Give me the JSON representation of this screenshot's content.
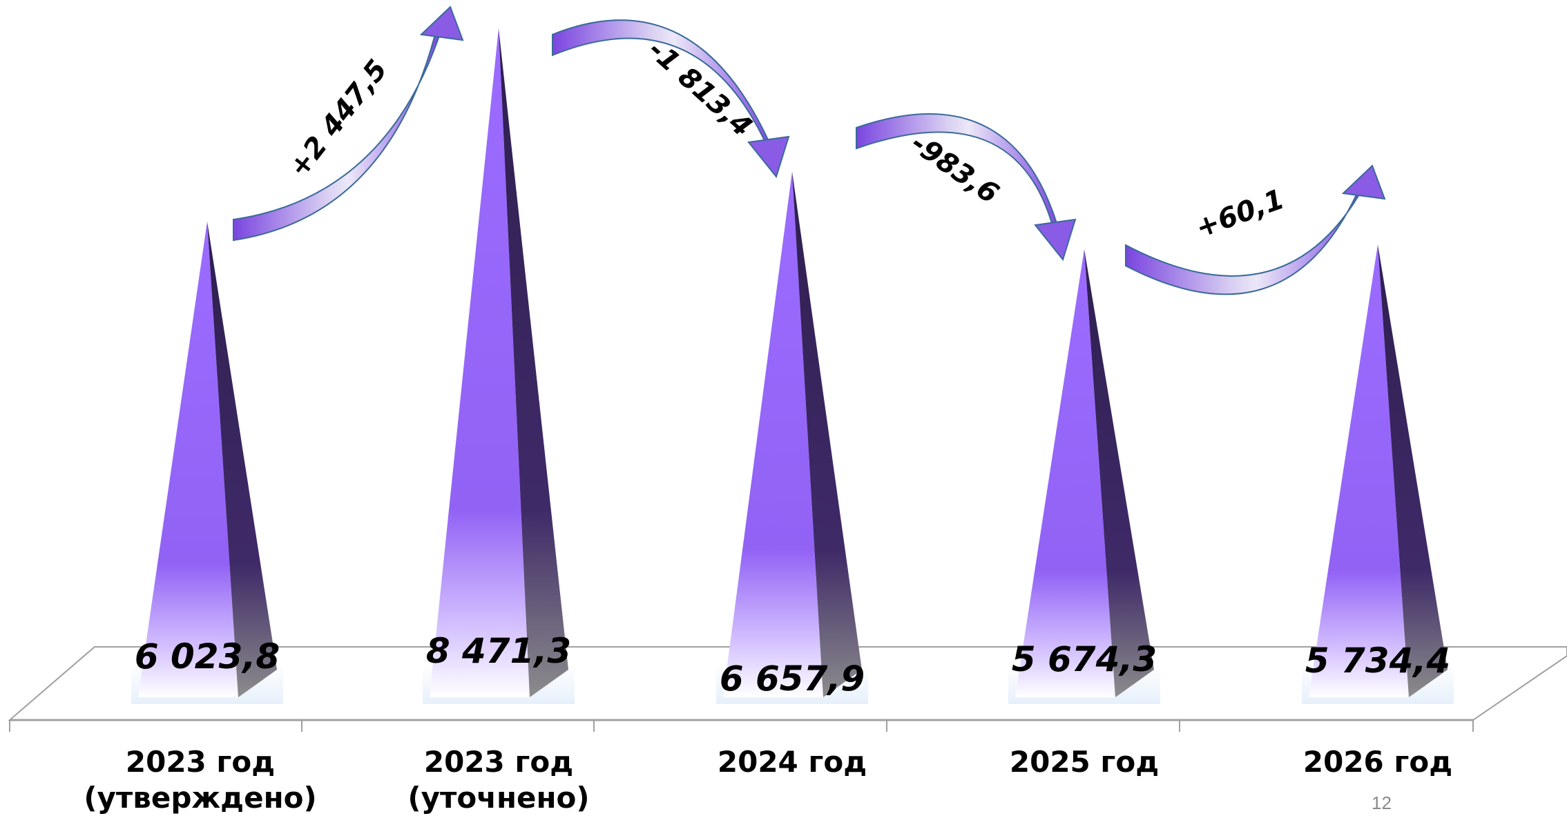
{
  "chart_data": {
    "type": "bar",
    "categories": [
      "2023 год\n(утверждено)",
      "2023 год\n(уточнено)",
      "2024 год",
      "2025 год",
      "2026 год"
    ],
    "values": [
      6023.8,
      8471.3,
      6657.9,
      5674.3,
      5734.4
    ],
    "value_labels": [
      "6 023,8",
      "8 471,3",
      "6 657,9",
      "5 674,3",
      "5 734,4"
    ],
    "changes": [
      {
        "from": 0,
        "to": 1,
        "label": "+2 447,5",
        "direction": "up"
      },
      {
        "from": 1,
        "to": 2,
        "label": "-1 813,4",
        "direction": "down"
      },
      {
        "from": 2,
        "to": 3,
        "label": "-983,6",
        "direction": "down"
      },
      {
        "from": 3,
        "to": 4,
        "label": "+60,1",
        "direction": "up"
      }
    ],
    "title": "",
    "xlabel": "",
    "ylabel": "",
    "ylim": [
      0,
      9000
    ],
    "grid": false,
    "legend": "none",
    "colors": {
      "bar_light": "#9b6cff",
      "bar_dark": "#3a2560",
      "bar_base": "#ffffff",
      "floor_line": "#a0a0a0",
      "arrow_fill": "#8a5ce6",
      "arrow_stroke": "#3a6a99"
    }
  },
  "page_number": "12"
}
